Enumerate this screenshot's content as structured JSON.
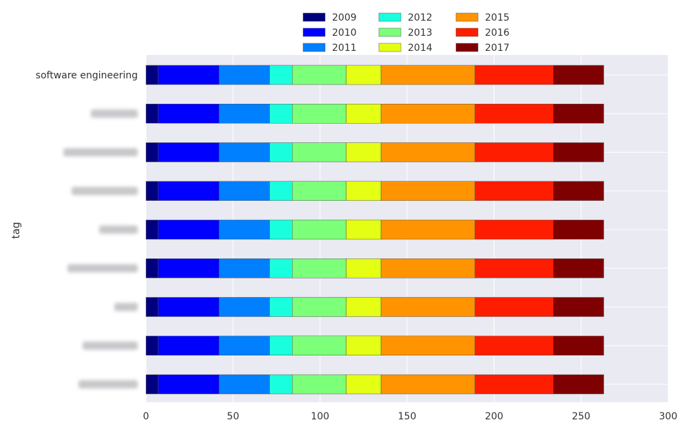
{
  "chart_data": {
    "type": "bar",
    "orientation": "horizontal",
    "stacked": true,
    "ylabel": "tag",
    "xlabel": "",
    "xlim": [
      0,
      300
    ],
    "xticks": [
      0,
      50,
      100,
      150,
      200,
      250,
      300
    ],
    "grid": true,
    "legend_position": "top-center",
    "categories": [
      "software engineering",
      "",
      "",
      "",
      "",
      "",
      "",
      "",
      ""
    ],
    "series": [
      {
        "name": "2009",
        "color": "#00007f",
        "values": [
          7,
          7,
          7,
          7,
          7,
          7,
          7,
          7,
          7
        ]
      },
      {
        "name": "2010",
        "color": "#0000ff",
        "values": [
          35,
          35,
          35,
          35,
          35,
          35,
          35,
          35,
          35
        ]
      },
      {
        "name": "2011",
        "color": "#007fff",
        "values": [
          29,
          29,
          29,
          29,
          29,
          29,
          29,
          29,
          29
        ]
      },
      {
        "name": "2012",
        "color": "#19ffde",
        "values": [
          13,
          13,
          13,
          13,
          13,
          13,
          13,
          13,
          13
        ]
      },
      {
        "name": "2013",
        "color": "#7cff79",
        "values": [
          31,
          31,
          31,
          31,
          31,
          31,
          31,
          31,
          31
        ]
      },
      {
        "name": "2014",
        "color": "#e4ff13",
        "values": [
          20,
          20,
          20,
          20,
          20,
          20,
          20,
          20,
          20
        ]
      },
      {
        "name": "2015",
        "color": "#ff9400",
        "values": [
          54,
          54,
          54,
          54,
          54,
          54,
          54,
          54,
          54
        ]
      },
      {
        "name": "2016",
        "color": "#ff1d00",
        "values": [
          45,
          45,
          45,
          45,
          45,
          45,
          45,
          45,
          45
        ]
      },
      {
        "name": "2017",
        "color": "#7f0000",
        "values": [
          29,
          29,
          29,
          29,
          29,
          29,
          29,
          29,
          29
        ]
      }
    ]
  }
}
